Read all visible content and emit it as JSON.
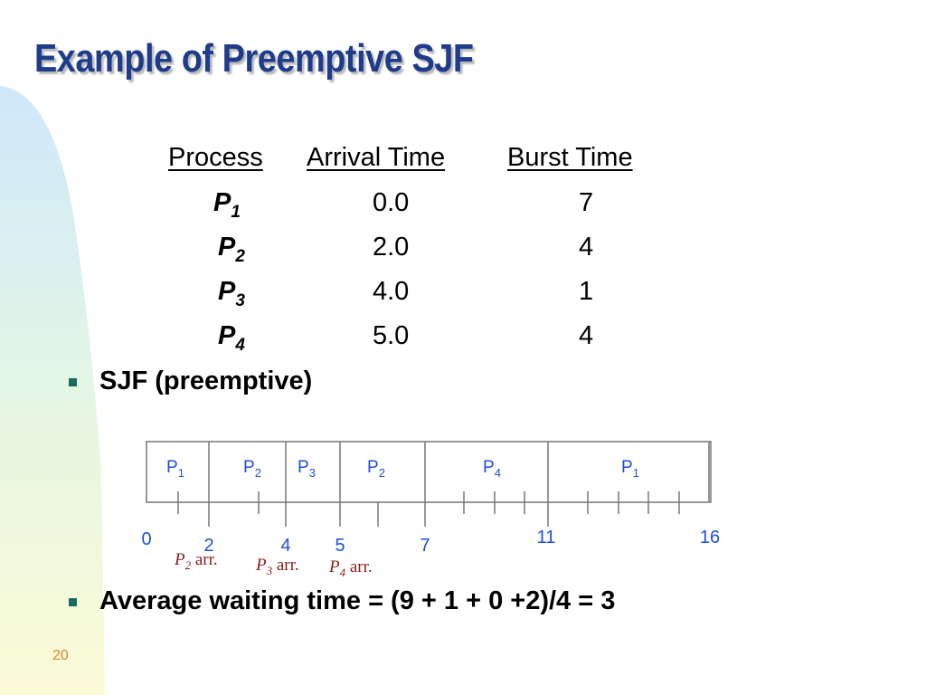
{
  "slide": {
    "title": "Example of Preemptive SJF",
    "number": "20"
  },
  "table": {
    "headers": [
      "Process",
      "Arrival Time",
      "Burst Time"
    ],
    "rows": [
      {
        "process_prefix": "P",
        "process_sub": "1",
        "arrival": "0.0",
        "burst": "7"
      },
      {
        "process_prefix": "P",
        "process_sub": "2",
        "arrival": "2.0",
        "burst": "4"
      },
      {
        "process_prefix": "P",
        "process_sub": "3",
        "arrival": "4.0",
        "burst": "1"
      },
      {
        "process_prefix": "P",
        "process_sub": "4",
        "arrival": "5.0",
        "burst": "4"
      }
    ]
  },
  "bullets": [
    "SJF (preemptive)",
    "Average waiting time = (9 + 1 + 0 +2)/4 = 3"
  ],
  "gantt": {
    "segments": [
      {
        "prefix": "P",
        "sub": "1",
        "start": 0,
        "end": 2
      },
      {
        "prefix": "P",
        "sub": "2",
        "start": 2,
        "end": 4
      },
      {
        "prefix": "P",
        "sub": "3",
        "start": 4,
        "end": 5
      },
      {
        "prefix": "P",
        "sub": "2",
        "start": 5,
        "end": 7
      },
      {
        "prefix": "P",
        "sub": "4",
        "start": 7,
        "end": 11
      },
      {
        "prefix": "P",
        "sub": "1",
        "start": 11,
        "end": 16
      }
    ],
    "time_labels": [
      "0",
      "2",
      "4",
      "5",
      "7",
      "11",
      "16"
    ],
    "arrivals": [
      {
        "prefix": "P",
        "sub": "2",
        "text": "arr."
      },
      {
        "prefix": "P",
        "sub": "3",
        "text": "arr."
      },
      {
        "prefix": "P",
        "sub": "4",
        "text": "arr."
      }
    ]
  },
  "colors": {
    "title": "#1f3c8c",
    "gantt_text": "#1f4ed8",
    "arrival_text": "#8b1a1a",
    "bullet": "#1c6a5f",
    "slide_number": "#e0802a"
  }
}
